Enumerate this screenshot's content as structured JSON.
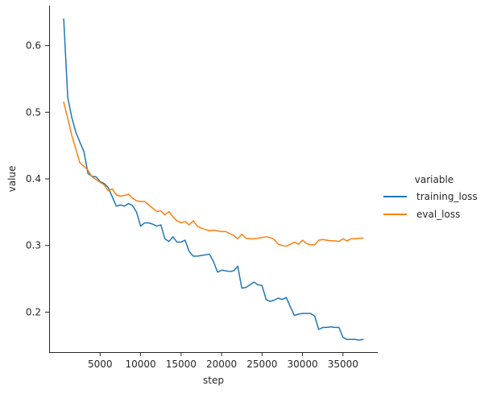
{
  "chart_data": {
    "type": "line",
    "xlabel": "step",
    "ylabel": "value",
    "xlim": [
      -1300,
      39300
    ],
    "ylim": [
      0.14,
      0.66
    ],
    "xticks": [
      5000,
      10000,
      15000,
      20000,
      25000,
      30000,
      35000
    ],
    "yticks": [
      0.2,
      0.3,
      0.4,
      0.5,
      0.6
    ],
    "grid": false,
    "legend": {
      "title": "variable",
      "placement": "right"
    },
    "series": [
      {
        "name": "training_loss",
        "color": "#1f77b4",
        "points": [
          [
            500,
            0.64
          ],
          [
            1000,
            0.522
          ],
          [
            1500,
            0.492
          ],
          [
            2000,
            0.47
          ],
          [
            2500,
            0.455
          ],
          [
            3000,
            0.441
          ],
          [
            3500,
            0.408
          ],
          [
            4000,
            0.404
          ],
          [
            4500,
            0.403
          ],
          [
            5000,
            0.396
          ],
          [
            5500,
            0.393
          ],
          [
            6000,
            0.387
          ],
          [
            6500,
            0.373
          ],
          [
            7000,
            0.359
          ],
          [
            7500,
            0.361
          ],
          [
            8000,
            0.359
          ],
          [
            8500,
            0.363
          ],
          [
            9000,
            0.36
          ],
          [
            9500,
            0.35
          ],
          [
            10000,
            0.329
          ],
          [
            10500,
            0.334
          ],
          [
            11000,
            0.334
          ],
          [
            11500,
            0.332
          ],
          [
            12000,
            0.329
          ],
          [
            12500,
            0.331
          ],
          [
            13000,
            0.31
          ],
          [
            13500,
            0.306
          ],
          [
            14000,
            0.313
          ],
          [
            14500,
            0.305
          ],
          [
            15000,
            0.305
          ],
          [
            15500,
            0.308
          ],
          [
            16000,
            0.291
          ],
          [
            16500,
            0.284
          ],
          [
            17000,
            0.284
          ],
          [
            17500,
            0.285
          ],
          [
            18000,
            0.286
          ],
          [
            18500,
            0.287
          ],
          [
            19000,
            0.276
          ],
          [
            19500,
            0.26
          ],
          [
            20000,
            0.263
          ],
          [
            20500,
            0.262
          ],
          [
            21000,
            0.261
          ],
          [
            21500,
            0.262
          ],
          [
            22000,
            0.269
          ],
          [
            22500,
            0.236
          ],
          [
            23000,
            0.237
          ],
          [
            23500,
            0.241
          ],
          [
            24000,
            0.245
          ],
          [
            24500,
            0.241
          ],
          [
            25000,
            0.24
          ],
          [
            25500,
            0.219
          ],
          [
            26000,
            0.216
          ],
          [
            26500,
            0.218
          ],
          [
            27000,
            0.221
          ],
          [
            27500,
            0.219
          ],
          [
            28000,
            0.222
          ],
          [
            28500,
            0.208
          ],
          [
            29000,
            0.195
          ],
          [
            29500,
            0.197
          ],
          [
            30000,
            0.198
          ],
          [
            30500,
            0.198
          ],
          [
            31000,
            0.198
          ],
          [
            31500,
            0.194
          ],
          [
            32000,
            0.174
          ],
          [
            32500,
            0.177
          ],
          [
            33000,
            0.177
          ],
          [
            33500,
            0.178
          ],
          [
            34000,
            0.177
          ],
          [
            34500,
            0.177
          ],
          [
            35000,
            0.162
          ],
          [
            35500,
            0.159
          ],
          [
            36000,
            0.159
          ],
          [
            36500,
            0.159
          ],
          [
            37000,
            0.158
          ],
          [
            37500,
            0.159
          ]
        ]
      },
      {
        "name": "eval_loss",
        "color": "#ff7f0e",
        "points": [
          [
            500,
            0.515
          ],
          [
            1000,
            0.491
          ],
          [
            1500,
            0.465
          ],
          [
            2000,
            0.445
          ],
          [
            2500,
            0.424
          ],
          [
            3000,
            0.419
          ],
          [
            3500,
            0.413
          ],
          [
            4000,
            0.403
          ],
          [
            4500,
            0.399
          ],
          [
            5000,
            0.395
          ],
          [
            5500,
            0.391
          ],
          [
            6000,
            0.382
          ],
          [
            6500,
            0.385
          ],
          [
            7000,
            0.376
          ],
          [
            7500,
            0.374
          ],
          [
            8000,
            0.375
          ],
          [
            8500,
            0.377
          ],
          [
            9000,
            0.371
          ],
          [
            9500,
            0.367
          ],
          [
            10000,
            0.366
          ],
          [
            10500,
            0.366
          ],
          [
            11000,
            0.361
          ],
          [
            11500,
            0.356
          ],
          [
            12000,
            0.351
          ],
          [
            12500,
            0.352
          ],
          [
            13000,
            0.346
          ],
          [
            13500,
            0.351
          ],
          [
            14000,
            0.343
          ],
          [
            14500,
            0.337
          ],
          [
            15000,
            0.334
          ],
          [
            15500,
            0.336
          ],
          [
            16000,
            0.331
          ],
          [
            16500,
            0.337
          ],
          [
            17000,
            0.329
          ],
          [
            17500,
            0.326
          ],
          [
            18000,
            0.324
          ],
          [
            18500,
            0.322
          ],
          [
            19000,
            0.323
          ],
          [
            19500,
            0.322
          ],
          [
            20000,
            0.321
          ],
          [
            20500,
            0.321
          ],
          [
            21000,
            0.318
          ],
          [
            21500,
            0.315
          ],
          [
            22000,
            0.31
          ],
          [
            22500,
            0.317
          ],
          [
            23000,
            0.311
          ],
          [
            23500,
            0.31
          ],
          [
            24000,
            0.31
          ],
          [
            24500,
            0.311
          ],
          [
            25000,
            0.312
          ],
          [
            25500,
            0.313
          ],
          [
            26000,
            0.312
          ],
          [
            26500,
            0.309
          ],
          [
            27000,
            0.302
          ],
          [
            27500,
            0.3
          ],
          [
            28000,
            0.299
          ],
          [
            28500,
            0.302
          ],
          [
            29000,
            0.305
          ],
          [
            29500,
            0.302
          ],
          [
            30000,
            0.308
          ],
          [
            30500,
            0.303
          ],
          [
            31000,
            0.301
          ],
          [
            31500,
            0.301
          ],
          [
            32000,
            0.308
          ],
          [
            32500,
            0.309
          ],
          [
            33000,
            0.308
          ],
          [
            33500,
            0.307
          ],
          [
            34000,
            0.307
          ],
          [
            34500,
            0.306
          ],
          [
            35000,
            0.31
          ],
          [
            35500,
            0.307
          ],
          [
            36000,
            0.31
          ],
          [
            36500,
            0.31
          ],
          [
            37000,
            0.311
          ],
          [
            37500,
            0.311
          ]
        ]
      }
    ]
  }
}
